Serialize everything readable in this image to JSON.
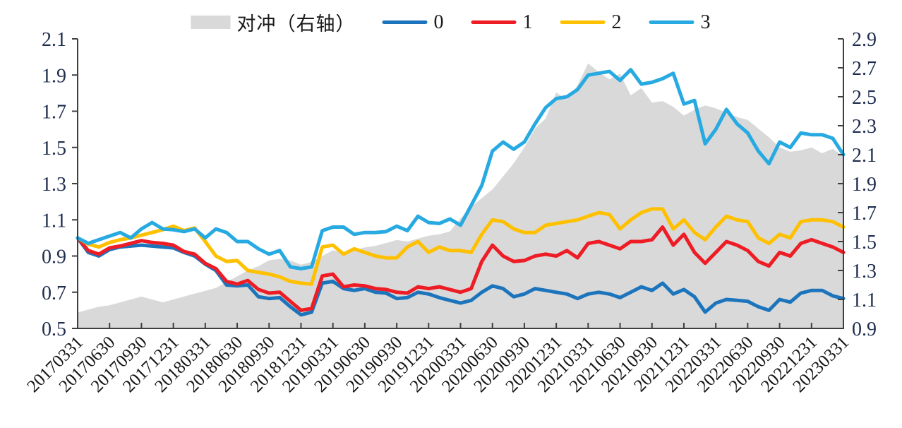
{
  "legend": {
    "items": [
      {
        "label": "对冲（右轴）",
        "type": "area",
        "color": "#d9d9d9"
      },
      {
        "label": "0",
        "type": "line",
        "color": "#1c75bc"
      },
      {
        "label": "1",
        "type": "line",
        "color": "#ee1c25"
      },
      {
        "label": "2",
        "type": "line",
        "color": "#ffc000"
      },
      {
        "label": "3",
        "type": "line",
        "color": "#27aae1"
      }
    ]
  },
  "chart_data": {
    "type": "line+area combo, dual y-axis",
    "x_frequency": "monthly points, quarterly tick labels",
    "grid": false,
    "legend_position": "top-center",
    "x_tick_labels": [
      "20170331",
      "20170630",
      "20170930",
      "20171231",
      "20180331",
      "20180630",
      "20180930",
      "20181231",
      "20190331",
      "20190630",
      "20190930",
      "20191231",
      "20200331",
      "20200630",
      "20200930",
      "20201231",
      "20210331",
      "20210630",
      "20210930",
      "20211231",
      "20220331",
      "20220630",
      "20220930",
      "20221231",
      "20230331"
    ],
    "left_axis": {
      "min": 0.5,
      "max": 2.1,
      "step": 0.2,
      "tick_labels": [
        "0.5",
        "0.7",
        "0.9",
        "1.1",
        "1.3",
        "1.5",
        "1.7",
        "1.9",
        "2.1"
      ]
    },
    "right_axis": {
      "min": 0.9,
      "max": 2.9,
      "step": 0.2,
      "tick_labels": [
        "0.9",
        "1.1",
        "1.3",
        "1.5",
        "1.7",
        "1.9",
        "2.1",
        "2.3",
        "2.5",
        "2.7",
        "2.9"
      ]
    },
    "series": [
      {
        "name": "对冲（右轴）",
        "type": "area",
        "axis": "right",
        "color": "#d9d9d9",
        "values": [
          1.01,
          1.03,
          1.05,
          1.06,
          1.08,
          1.1,
          1.12,
          1.1,
          1.08,
          1.1,
          1.12,
          1.14,
          1.16,
          1.18,
          1.22,
          1.26,
          1.3,
          1.33,
          1.37,
          1.38,
          1.37,
          1.34,
          1.36,
          1.4,
          1.44,
          1.42,
          1.44,
          1.46,
          1.47,
          1.49,
          1.51,
          1.5,
          1.52,
          1.54,
          1.55,
          1.57,
          1.66,
          1.74,
          1.8,
          1.86,
          1.95,
          2.04,
          2.15,
          2.28,
          2.35,
          2.53,
          2.48,
          2.58,
          2.73,
          2.67,
          2.62,
          2.66,
          2.51,
          2.56,
          2.46,
          2.47,
          2.43,
          2.37,
          2.41,
          2.44,
          2.42,
          2.39,
          2.36,
          2.34,
          2.28,
          2.22,
          2.15,
          2.12,
          2.13,
          2.15,
          2.11,
          2.14,
          2.09
        ]
      },
      {
        "name": "0",
        "type": "line",
        "axis": "left",
        "color": "#1c75bc",
        "values": [
          1.0,
          0.92,
          0.9,
          0.935,
          0.95,
          0.955,
          0.96,
          0.955,
          0.95,
          0.945,
          0.92,
          0.9,
          0.855,
          0.82,
          0.74,
          0.735,
          0.74,
          0.675,
          0.665,
          0.67,
          0.62,
          0.575,
          0.59,
          0.75,
          0.76,
          0.72,
          0.71,
          0.72,
          0.7,
          0.695,
          0.665,
          0.67,
          0.7,
          0.69,
          0.67,
          0.655,
          0.64,
          0.655,
          0.7,
          0.735,
          0.72,
          0.675,
          0.69,
          0.72,
          0.71,
          0.7,
          0.69,
          0.665,
          0.69,
          0.7,
          0.69,
          0.67,
          0.7,
          0.73,
          0.71,
          0.75,
          0.69,
          0.715,
          0.675,
          0.59,
          0.64,
          0.66,
          0.655,
          0.65,
          0.62,
          0.6,
          0.66,
          0.645,
          0.695,
          0.71,
          0.71,
          0.68,
          0.665
        ]
      },
      {
        "name": "1",
        "type": "line",
        "axis": "left",
        "color": "#ee1c25",
        "values": [
          1.0,
          0.93,
          0.91,
          0.945,
          0.955,
          0.97,
          0.985,
          0.975,
          0.97,
          0.96,
          0.925,
          0.91,
          0.86,
          0.83,
          0.76,
          0.745,
          0.765,
          0.715,
          0.695,
          0.7,
          0.65,
          0.6,
          0.61,
          0.79,
          0.8,
          0.73,
          0.74,
          0.735,
          0.72,
          0.715,
          0.7,
          0.695,
          0.73,
          0.72,
          0.73,
          0.715,
          0.7,
          0.72,
          0.87,
          0.96,
          0.9,
          0.87,
          0.875,
          0.9,
          0.91,
          0.9,
          0.93,
          0.89,
          0.97,
          0.98,
          0.96,
          0.94,
          0.98,
          0.98,
          0.99,
          1.06,
          0.96,
          1.02,
          0.92,
          0.86,
          0.92,
          0.98,
          0.96,
          0.93,
          0.87,
          0.845,
          0.92,
          0.9,
          0.97,
          0.99,
          0.97,
          0.95,
          0.92
        ]
      },
      {
        "name": "2",
        "type": "line",
        "axis": "left",
        "color": "#ffc000",
        "values": [
          1.0,
          0.965,
          0.95,
          0.975,
          0.99,
          1.0,
          1.015,
          1.03,
          1.045,
          1.065,
          1.04,
          1.055,
          0.98,
          0.9,
          0.87,
          0.875,
          0.82,
          0.81,
          0.8,
          0.785,
          0.76,
          0.75,
          0.745,
          0.95,
          0.96,
          0.91,
          0.94,
          0.92,
          0.9,
          0.89,
          0.89,
          0.95,
          0.98,
          0.92,
          0.95,
          0.93,
          0.93,
          0.92,
          1.02,
          1.1,
          1.09,
          1.05,
          1.03,
          1.03,
          1.07,
          1.08,
          1.09,
          1.1,
          1.12,
          1.14,
          1.13,
          1.05,
          1.1,
          1.14,
          1.16,
          1.16,
          1.05,
          1.1,
          1.03,
          0.99,
          1.06,
          1.12,
          1.1,
          1.09,
          1.0,
          0.97,
          1.02,
          1.0,
          1.09,
          1.1,
          1.1,
          1.09,
          1.06
        ]
      },
      {
        "name": "3",
        "type": "line",
        "axis": "left",
        "color": "#27aae1",
        "values": [
          1.0,
          0.97,
          0.99,
          1.01,
          1.03,
          1.0,
          1.05,
          1.085,
          1.05,
          1.045,
          1.035,
          1.05,
          1.0,
          1.05,
          1.03,
          0.98,
          0.98,
          0.94,
          0.91,
          0.93,
          0.84,
          0.83,
          0.84,
          1.04,
          1.06,
          1.06,
          1.02,
          1.03,
          1.03,
          1.035,
          1.065,
          1.04,
          1.12,
          1.085,
          1.08,
          1.105,
          1.07,
          1.18,
          1.29,
          1.48,
          1.53,
          1.49,
          1.53,
          1.63,
          1.72,
          1.77,
          1.78,
          1.82,
          1.9,
          1.91,
          1.92,
          1.87,
          1.93,
          1.85,
          1.86,
          1.88,
          1.91,
          1.74,
          1.76,
          1.52,
          1.6,
          1.71,
          1.63,
          1.58,
          1.48,
          1.41,
          1.53,
          1.5,
          1.58,
          1.57,
          1.57,
          1.55,
          1.46
        ]
      }
    ]
  }
}
